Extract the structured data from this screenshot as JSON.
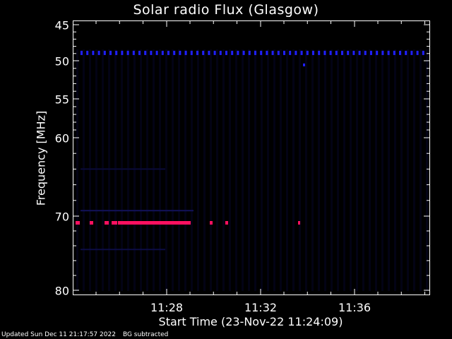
{
  "chart_data": {
    "type": "heatmap",
    "title": "Solar radio Flux (Glasgow)",
    "ylabel": "Frequency [MHz]",
    "xlabel": "Start Time (23-Nov-22 11:24:09)",
    "yticks": [
      "45",
      "50",
      "55",
      "60",
      "70",
      "80"
    ],
    "xticks": [
      "11:28",
      "11:32",
      "11:36"
    ],
    "features": [
      {
        "kind": "dotted-band",
        "frequency_mhz": 49.5,
        "color": "#2020ff"
      },
      {
        "kind": "bright-band",
        "frequency_mhz": 70.9,
        "color": "#ff1060"
      },
      {
        "kind": "faint-band",
        "frequency_mhz": 69.3,
        "color": "#12125a"
      },
      {
        "kind": "faint-band",
        "frequency_mhz": 74.5,
        "color": "#0c0c44"
      },
      {
        "kind": "faint-band",
        "frequency_mhz": 64.0,
        "color": "#0a0a38"
      }
    ],
    "colors": {
      "background": "#000000",
      "low": "#050522",
      "mid": "#2020ff",
      "high": "#ff1060"
    }
  },
  "footer": {
    "updated": "Updated Sun Dec 11 21:17:57 2022",
    "note": "BG subtracted"
  }
}
